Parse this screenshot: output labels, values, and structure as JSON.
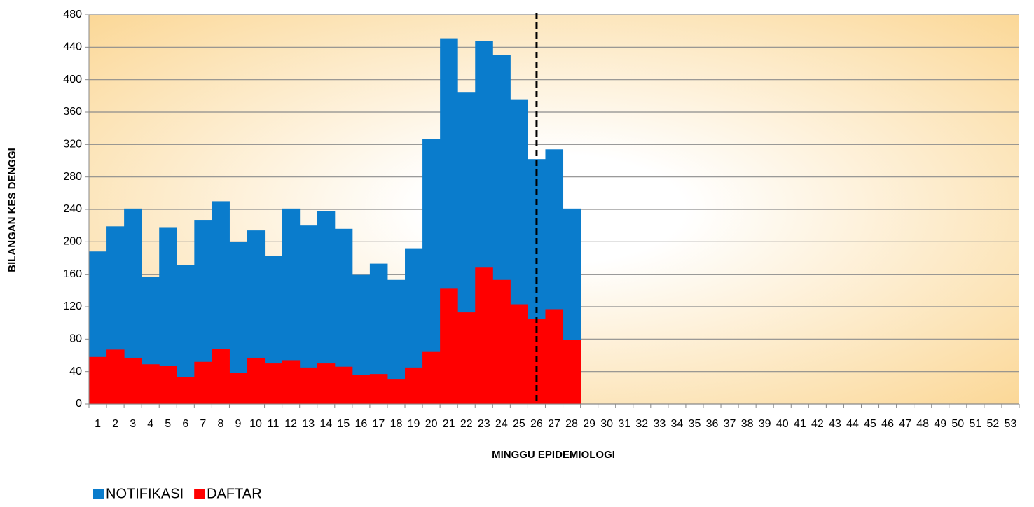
{
  "chart_data": {
    "type": "bar",
    "x_label": "MINGGU EPIDEMIOLOGI",
    "y_label": "BILANGAN KES DENGGI",
    "categories": [
      "1",
      "2",
      "3",
      "4",
      "5",
      "6",
      "7",
      "8",
      "9",
      "10",
      "11",
      "12",
      "13",
      "14",
      "15",
      "16",
      "17",
      "18",
      "19",
      "20",
      "21",
      "22",
      "23",
      "24",
      "25",
      "26",
      "27",
      "28",
      "29",
      "30",
      "31",
      "32",
      "33",
      "34",
      "35",
      "36",
      "37",
      "38",
      "39",
      "40",
      "41",
      "42",
      "43",
      "44",
      "45",
      "46",
      "47",
      "48",
      "49",
      "50",
      "51",
      "52",
      "53"
    ],
    "series": [
      {
        "name": "NOTIFIKASI",
        "color": "#0a7ccc",
        "values": [
          188,
          219,
          241,
          157,
          218,
          171,
          227,
          250,
          200,
          214,
          183,
          241,
          220,
          238,
          216,
          160,
          173,
          153,
          192,
          327,
          451,
          384,
          448,
          430,
          375,
          302,
          314,
          241,
          null,
          null,
          null,
          null,
          null,
          null,
          null,
          null,
          null,
          null,
          null,
          null,
          null,
          null,
          null,
          null,
          null,
          null,
          null,
          null,
          null,
          null,
          null,
          null,
          null
        ]
      },
      {
        "name": "DAFTAR",
        "color": "#ff0000",
        "values": [
          58,
          67,
          57,
          49,
          47,
          33,
          52,
          68,
          38,
          57,
          50,
          54,
          45,
          50,
          46,
          36,
          37,
          31,
          45,
          65,
          143,
          113,
          169,
          153,
          123,
          105,
          117,
          79,
          null,
          null,
          null,
          null,
          null,
          null,
          null,
          null,
          null,
          null,
          null,
          null,
          null,
          null,
          null,
          null,
          null,
          null,
          null,
          null,
          null,
          null,
          null,
          null,
          null
        ]
      }
    ],
    "ylim": [
      0,
      480
    ],
    "yticks": [
      0,
      40,
      80,
      120,
      160,
      200,
      240,
      280,
      320,
      360,
      400,
      440,
      480
    ],
    "grid": true,
    "stacked": false,
    "vline_category": "26",
    "legend": "bottom-left"
  }
}
